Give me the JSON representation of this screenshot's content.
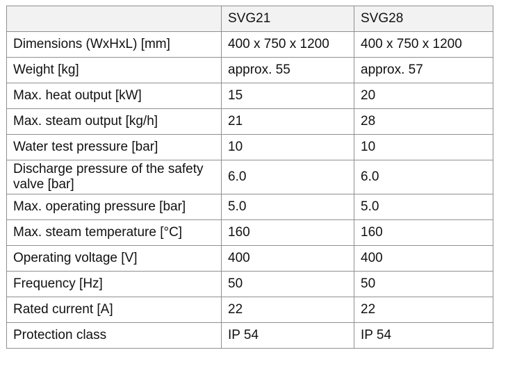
{
  "table": {
    "header": [
      "",
      "SVG21",
      "SVG28"
    ],
    "rows": [
      {
        "param": "Dimensions (WxHxL) [mm]",
        "svg21": "400 x 750 x 1200",
        "svg28": "400 x 750 x 1200"
      },
      {
        "param": "Weight [kg]",
        "svg21": "approx. 55",
        "svg28": "approx. 57"
      },
      {
        "param": "Max. heat output [kW]",
        "svg21": "15",
        "svg28": "20"
      },
      {
        "param": "Max. steam output [kg/h]",
        "svg21": "21",
        "svg28": "28"
      },
      {
        "param": "Water test pressure [bar]",
        "svg21": "10",
        "svg28": "10"
      },
      {
        "param": "Discharge pressure of the safety valve [bar]",
        "svg21": "6.0",
        "svg28": "6.0"
      },
      {
        "param": "Max. operating pressure [bar]",
        "svg21": "5.0",
        "svg28": "5.0"
      },
      {
        "param": "Max. steam temperature [°C]",
        "svg21": "160",
        "svg28": "160"
      },
      {
        "param": "Operating voltage [V]",
        "svg21": "400",
        "svg28": "400"
      },
      {
        "param": "Frequency [Hz]",
        "svg21": "50",
        "svg28": "50"
      },
      {
        "param": "Rated current [A]",
        "svg21": "22",
        "svg28": "22"
      },
      {
        "param": "Protection class",
        "svg21": "IP 54",
        "svg28": "IP 54"
      }
    ]
  }
}
